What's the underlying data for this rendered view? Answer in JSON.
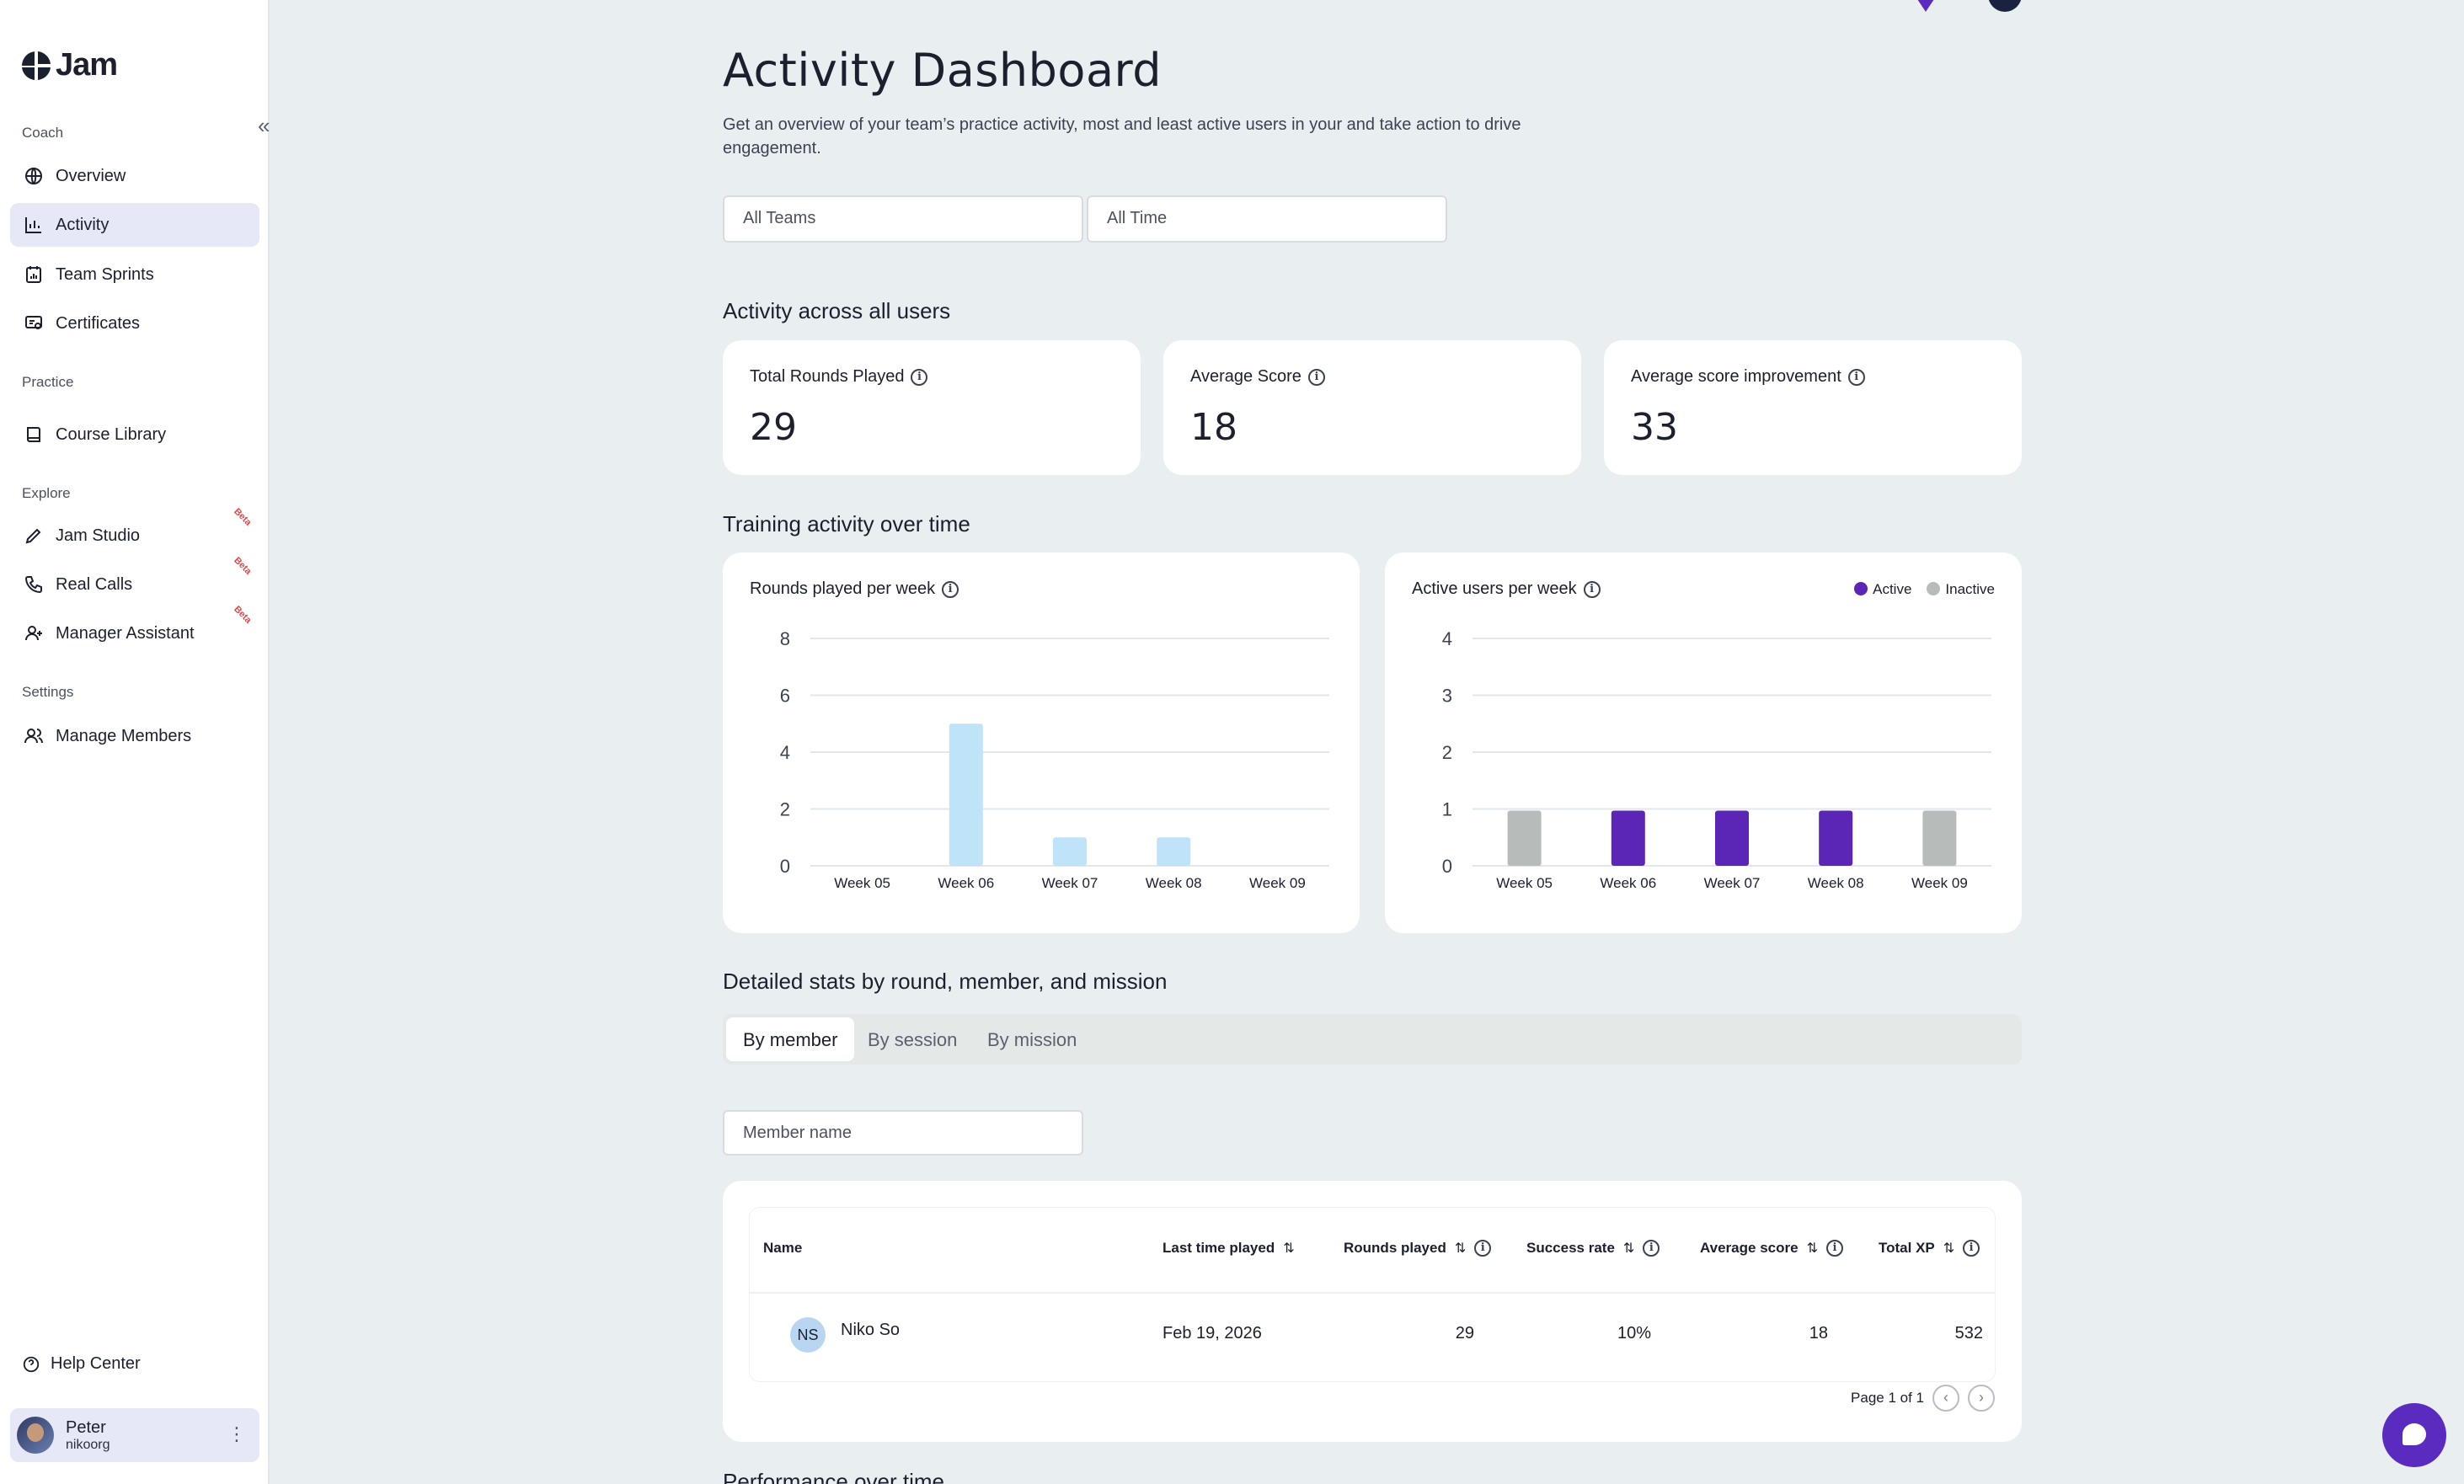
{
  "app": {
    "logo_text": "Jam"
  },
  "sidebar": {
    "sections": [
      {
        "label": "Coach"
      },
      {
        "label": "Practice"
      },
      {
        "label": "Explore"
      },
      {
        "label": "Settings"
      }
    ],
    "items": [
      {
        "label": "Overview",
        "icon": "globe-icon"
      },
      {
        "label": "Activity",
        "icon": "bar-chart-icon",
        "active": true
      },
      {
        "label": "Team Sprints",
        "icon": "calendar-chart-icon"
      },
      {
        "label": "Certificates",
        "icon": "certificate-icon"
      },
      {
        "label": "Course Library",
        "icon": "book-icon"
      },
      {
        "label": "Jam Studio",
        "icon": "pencil-icon",
        "badge": "Beta"
      },
      {
        "label": "Real Calls",
        "icon": "phone-icon",
        "badge": "Beta"
      },
      {
        "label": "Manager Assistant",
        "icon": "user-plus-icon",
        "badge": "Beta"
      },
      {
        "label": "Manage Members",
        "icon": "users-icon"
      }
    ],
    "help_label": "Help Center",
    "user": {
      "name": "Peter",
      "org": "nikoorg"
    }
  },
  "header": {
    "title": "Activity Dashboard",
    "subtitle": "Get an overview of your team’s practice activity, most and least active users in your and take action to drive engagement."
  },
  "filters": {
    "team": "All Teams",
    "time": "All Time"
  },
  "stats": {
    "section_title": "Activity across all users",
    "cards": [
      {
        "label": "Total Rounds Played",
        "value": "29"
      },
      {
        "label": "Average Score",
        "value": "18"
      },
      {
        "label": "Average score improvement",
        "value": "33"
      }
    ]
  },
  "training": {
    "section_title": "Training activity over time"
  },
  "chart_data": [
    {
      "type": "bar",
      "title": "Rounds played per week",
      "categories": [
        "Week 05",
        "Week 06",
        "Week 07",
        "Week 08",
        "Week 09"
      ],
      "values": [
        0,
        5,
        1,
        1,
        0
      ],
      "ylim": [
        0,
        8
      ],
      "yticks": [
        0,
        2,
        4,
        6,
        8
      ],
      "color": "#bfe3f8",
      "grid": true
    },
    {
      "type": "bar",
      "title": "Active users per week",
      "categories": [
        "Week 05",
        "Week 06",
        "Week 07",
        "Week 08",
        "Week 09"
      ],
      "series": [
        {
          "name": "Active",
          "values": [
            0,
            1,
            1,
            1,
            0
          ],
          "color": "#5b25b5"
        },
        {
          "name": "Inactive",
          "values": [
            1,
            0,
            0,
            0,
            1
          ],
          "color": "#b7bbba"
        }
      ],
      "ylim": [
        0,
        4
      ],
      "yticks": [
        0,
        1,
        2,
        3,
        4
      ],
      "legend": "top-right",
      "grid": true
    }
  ],
  "detailed": {
    "section_title": "Detailed stats by round, member, and mission",
    "tabs": [
      "By member",
      "By session",
      "By mission"
    ],
    "member_placeholder": "Member name",
    "columns": [
      "Name",
      "Last time played",
      "Rounds played",
      "Success rate",
      "Average score",
      "Total XP"
    ],
    "rows": [
      {
        "initials": "NS",
        "name": "Niko So",
        "last_played": "Feb 19, 2026",
        "rounds": "29",
        "success": "10%",
        "avg_score": "18",
        "xp": "532"
      }
    ],
    "pager": "Page 1 of 1"
  },
  "next_section_title": "Performance over time"
}
